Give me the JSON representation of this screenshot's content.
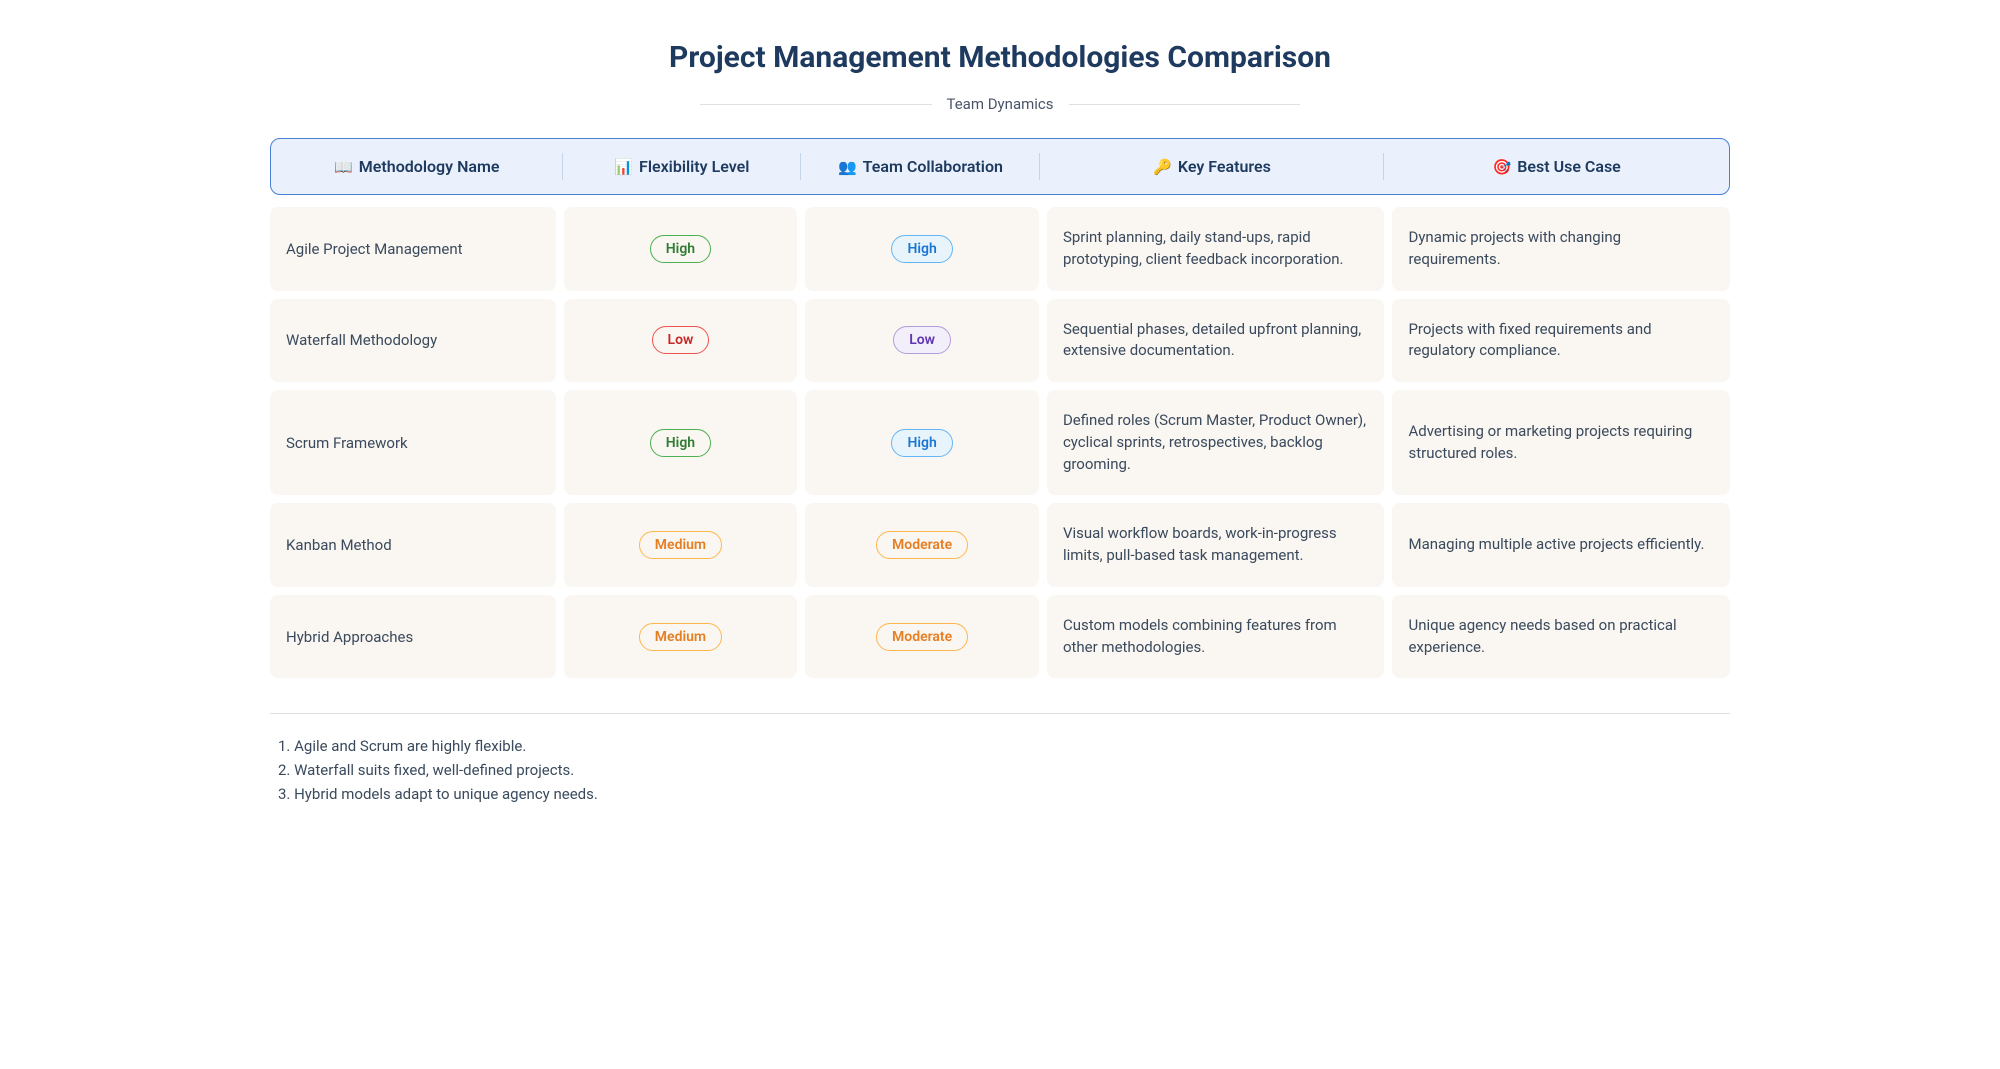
{
  "title": "Project Management Methodologies Comparison",
  "subtitle": "Team Dynamics",
  "headers": [
    {
      "icon": "📖",
      "label": "Methodology Name"
    },
    {
      "icon": "📊",
      "label": "Flexibility Level"
    },
    {
      "icon": "👥",
      "label": "Team Collaboration"
    },
    {
      "icon": "🔑",
      "label": "Key Features"
    },
    {
      "icon": "🎯",
      "label": "Best Use Case"
    }
  ],
  "rows": [
    {
      "name": "Agile Project Management",
      "flexibility": {
        "label": "High",
        "style": "high-green"
      },
      "collaboration": {
        "label": "High",
        "style": "high-blue"
      },
      "features": "Sprint planning, daily stand-ups, rapid prototyping, client feedback incorporation.",
      "usecase": "Dynamic projects with changing requirements."
    },
    {
      "name": "Waterfall Methodology",
      "flexibility": {
        "label": "Low",
        "style": "low-red"
      },
      "collaboration": {
        "label": "Low",
        "style": "low-purple"
      },
      "features": "Sequential phases, detailed upfront planning, extensive documentation.",
      "usecase": "Projects with fixed requirements and regulatory compliance."
    },
    {
      "name": "Scrum Framework",
      "flexibility": {
        "label": "High",
        "style": "high-green"
      },
      "collaboration": {
        "label": "High",
        "style": "high-blue"
      },
      "features": "Defined roles (Scrum Master, Product Owner), cyclical sprints, retrospectives, backlog grooming.",
      "usecase": "Advertising or marketing projects requiring structured roles."
    },
    {
      "name": "Kanban Method",
      "flexibility": {
        "label": "Medium",
        "style": "medium-orange"
      },
      "collaboration": {
        "label": "Moderate",
        "style": "moderate-orange"
      },
      "features": "Visual workflow boards, work-in-progress limits, pull-based task management.",
      "usecase": "Managing multiple active projects efficiently."
    },
    {
      "name": "Hybrid Approaches",
      "flexibility": {
        "label": "Medium",
        "style": "medium-orange"
      },
      "collaboration": {
        "label": "Moderate",
        "style": "moderate-orange"
      },
      "features": "Custom models combining features from other methodologies.",
      "usecase": "Unique agency needs based on practical experience."
    }
  ],
  "footer": [
    "1. Agile and Scrum are highly flexible.",
    "2. Waterfall suits fixed, well-defined projects.",
    "3. Hybrid models adapt to unique agency needs."
  ],
  "styling": {
    "header_bg": "#eaf1fc",
    "header_border": "#4a7fd8",
    "cell_bg": "#faf6f2",
    "text_color": "#3a4a5c",
    "title_color": "#1e3a5f",
    "badge_colors": {
      "high-green": "#4caf50",
      "high-blue": "#64b5f6",
      "low-red": "#ef5350",
      "low-purple": "#b39ddb",
      "medium-orange": "#ffb74d",
      "moderate-orange": "#ffb74d"
    }
  }
}
